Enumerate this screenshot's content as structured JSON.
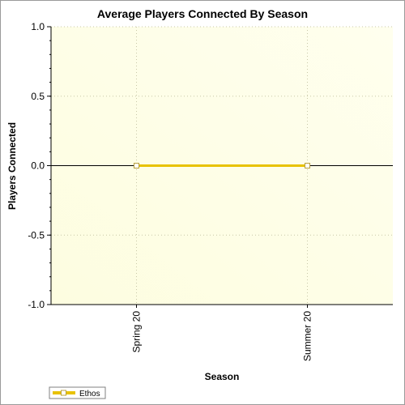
{
  "chart_data": {
    "type": "line",
    "title": "Average Players Connected By Season",
    "xlabel": "Season",
    "ylabel": "Players Connected",
    "categories": [
      "Spring 20",
      "Summer 20"
    ],
    "series": [
      {
        "name": "Ethos",
        "values": [
          0,
          0
        ],
        "color": "#e8c200"
      }
    ],
    "ylim": [
      -1.0,
      1.0
    ],
    "yticks": [
      "1.0",
      "0.5",
      "0.0",
      "-0.5",
      "-1.0"
    ],
    "ytick_values": [
      1.0,
      0.5,
      0.0,
      -0.5,
      -1.0
    ],
    "grid": true,
    "legend_position": "bottom-left",
    "colors": {
      "plot_background_start": "#fdfde0",
      "plot_background_end": "#ffffee",
      "gridline": "#c8c8a8",
      "zero_line": "#000000",
      "marker_fill": "#ffffff",
      "marker_stroke": "#b8a040"
    }
  }
}
